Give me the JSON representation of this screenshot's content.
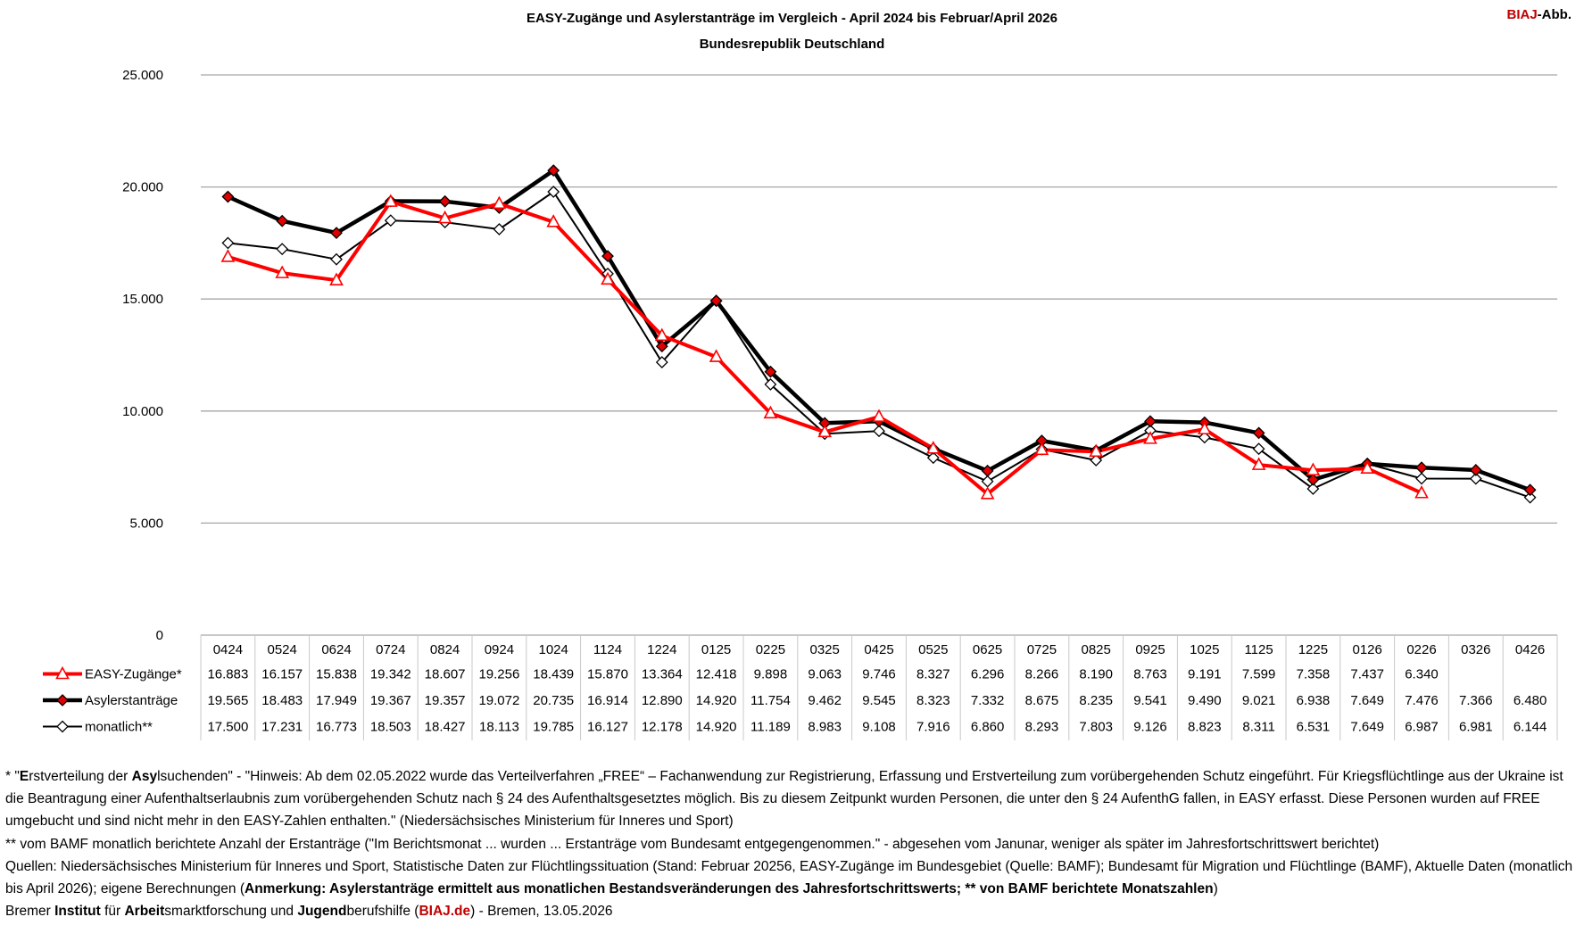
{
  "header": {
    "title": "EASY-Zugänge und Asylerstanträge im Vergleich - April 2024 bis Februar/April 2026",
    "subtitle": "Bundesrepublik Deutschland",
    "brand_red": "BIAJ",
    "brand_rest": "-Abb."
  },
  "chart_data": {
    "type": "line",
    "title": "EASY-Zugänge und Asylerstanträge im Vergleich - April 2024 bis Februar/April 2026",
    "subtitle": "Bundesrepublik Deutschland",
    "xlabel": "",
    "ylabel": "",
    "ylim": [
      0,
      25000
    ],
    "yticks": [
      0,
      5000,
      10000,
      15000,
      20000,
      25000
    ],
    "ytick_labels": [
      "0",
      "5.000",
      "10.000",
      "15.000",
      "20.000",
      "25.000"
    ],
    "grid": true,
    "legend": "data-table",
    "categories": [
      "0424",
      "0524",
      "0624",
      "0724",
      "0824",
      "0924",
      "1024",
      "1124",
      "1224",
      "0125",
      "0225",
      "0325",
      "0425",
      "0525",
      "0625",
      "0725",
      "0825",
      "0925",
      "1025",
      "1125",
      "1225",
      "0126",
      "0226",
      "0326",
      "0426"
    ],
    "series": [
      {
        "name": "EASY-Zugänge*",
        "color": "#ff0000",
        "marker": "triangle",
        "values": [
          16883,
          16157,
          15838,
          19342,
          18607,
          19256,
          18439,
          15870,
          13364,
          12418,
          9898,
          9063,
          9746,
          8327,
          6296,
          8266,
          8190,
          8763,
          9191,
          7599,
          7358,
          7437,
          6340,
          null,
          null
        ],
        "labels": [
          "16.883",
          "16.157",
          "15.838",
          "19.342",
          "18.607",
          "19.256",
          "18.439",
          "15.870",
          "13.364",
          "12.418",
          "9.898",
          "9.063",
          "9.746",
          "8.327",
          "6.296",
          "8.266",
          "8.190",
          "8.763",
          "9.191",
          "7.599",
          "7.358",
          "7.437",
          "6.340",
          "",
          ""
        ]
      },
      {
        "name": "Asylerstanträge",
        "color": "#000000",
        "marker": "diamond-filled",
        "values": [
          19565,
          18483,
          17949,
          19367,
          19357,
          19072,
          20735,
          16914,
          12890,
          14920,
          11754,
          9462,
          9545,
          8323,
          7332,
          8675,
          8235,
          9541,
          9490,
          9021,
          6938,
          7649,
          7476,
          7366,
          6480
        ],
        "labels": [
          "19.565",
          "18.483",
          "17.949",
          "19.367",
          "19.357",
          "19.072",
          "20.735",
          "16.914",
          "12.890",
          "14.920",
          "11.754",
          "9.462",
          "9.545",
          "8.323",
          "7.332",
          "8.675",
          "8.235",
          "9.541",
          "9.490",
          "9.021",
          "6.938",
          "7.649",
          "7.476",
          "7.366",
          "6.480"
        ]
      },
      {
        "name": "monatlich**",
        "color": "#000000",
        "marker": "diamond-open",
        "values": [
          17500,
          17231,
          16773,
          18503,
          18427,
          18113,
          19785,
          16127,
          12178,
          14920,
          11189,
          8983,
          9108,
          7916,
          6860,
          8293,
          7803,
          9126,
          8823,
          8311,
          6531,
          7649,
          6987,
          6981,
          6144
        ],
        "labels": [
          "17.500",
          "17.231",
          "16.773",
          "18.503",
          "18.427",
          "18.113",
          "19.785",
          "16.127",
          "12.178",
          "14.920",
          "11.189",
          "8.983",
          "9.108",
          "7.916",
          "6.860",
          "8.293",
          "7.803",
          "9.126",
          "8.823",
          "8.311",
          "6.531",
          "7.649",
          "6.987",
          "6.981",
          "6.144"
        ]
      }
    ]
  },
  "notes": {
    "n1_pre": "* \"",
    "n1_b1": "E",
    "n1_m1": "rstverteilung der ",
    "n1_b2": "Asy",
    "n1_rest": "lsuchenden\" - \"Hinweis: Ab dem 02.05.2022 wurde das Verteilverfahren „FREE“ – Fachanwendung zur Registrierung, Erfassung und Erstverteilung zum vorübergehenden Schutz eingeführt. Für Kriegsflüchtlinge aus der Ukraine ist die Beantragung einer Aufenthaltserlaubnis zum vorübergehenden Schutz nach § 24 des Aufenthaltsgesetztes möglich. Bis zu diesem Zeitpunkt wurden Personen, die unter den § 24 AufenthG fallen, in EASY erfasst. Diese Personen wurden auf FREE umgebucht und sind nicht mehr in den EASY-Zahlen enthalten.\" (Niedersächsisches Ministerium für Inneres und Sport)",
    "n2": "** vom BAMF monatlich berichtete Anzahl der Erstanträge (\"Im Berichtsmonat ... wurden ... Erstanträge vom Bundesamt entgegengenommen.\" - abgesehen vom Janunar, weniger als später im Jahresfortschrittswert berichtet)",
    "n3_pre": "Quellen: Niedersächsisches Ministerium für Inneres und Sport, Statistische Daten zur Flüchtlingssituation (Stand: Februar 20256, EASY-Zugänge im Bundesgebiet (Quelle: BAMF); Bundesamt für Migration und Flüchtlinge (BAMF), Aktuelle Daten (monatlich bis April 2026); eigene Berechnungen (",
    "n3_bold": "Anmerkung: Asylerstanträge ermittelt aus monatlichen Bestandsveränderungen des Jahresfortschrittswerts; ** von BAMF berichtete Monatszahlen",
    "n3_post": ")",
    "n4_a": "Bremer ",
    "n4_b": "Institut",
    "n4_c": " für ",
    "n4_d": "Arbeit",
    "n4_e": "smarktforschung und ",
    "n4_f": "Jugend",
    "n4_g": "berufshilfe (",
    "n4_h": "BIAJ.de",
    "n4_i": ") - Bremen, 13.05.2026"
  }
}
